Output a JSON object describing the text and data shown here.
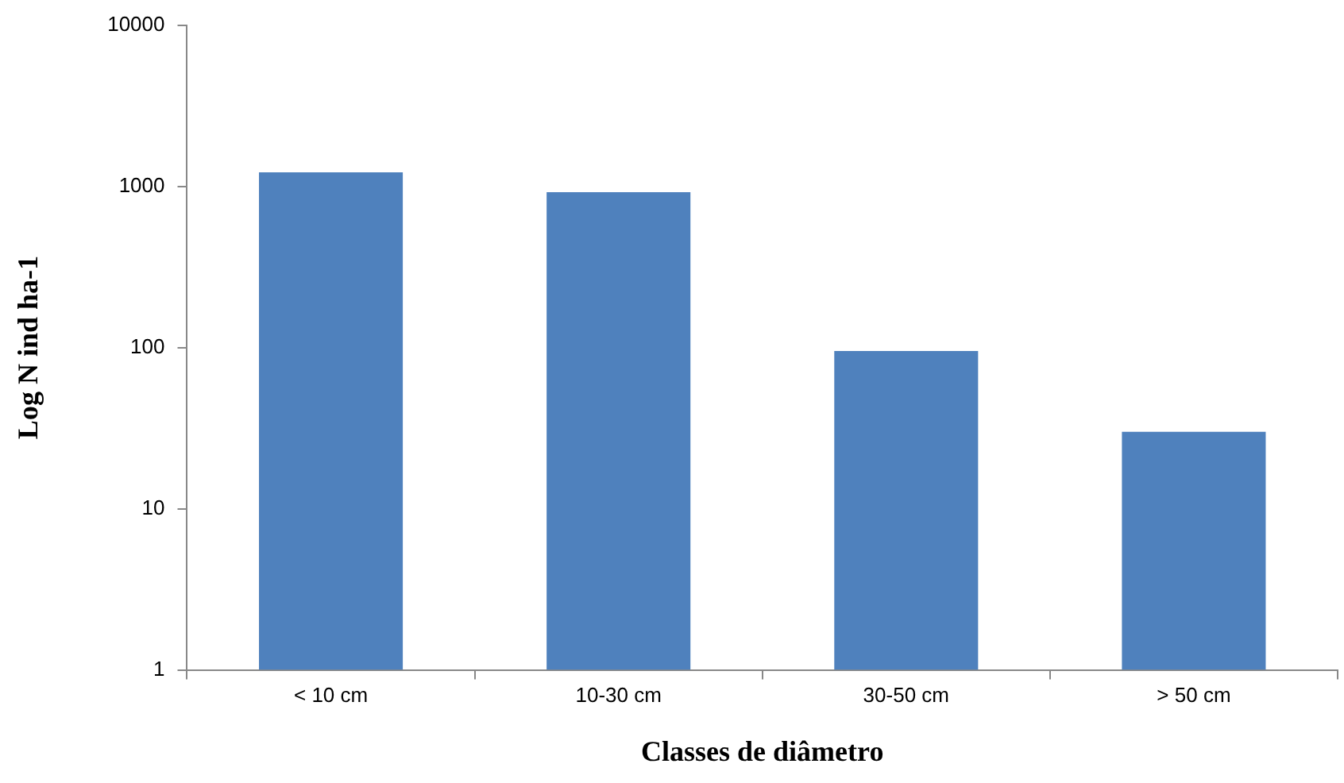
{
  "chart_data": {
    "type": "bar",
    "xlabel": "Classes de diâmetro",
    "ylabel": "Log N ind ha-1",
    "categories": [
      "< 10 cm",
      "10-30 cm",
      "30-50 cm",
      "> 50 cm"
    ],
    "values": [
      1220,
      920,
      95,
      30
    ],
    "color": "#4f81bd",
    "log": true,
    "ylim": [
      1,
      10000
    ],
    "yticks": [
      1,
      10,
      100,
      1000,
      10000
    ]
  }
}
